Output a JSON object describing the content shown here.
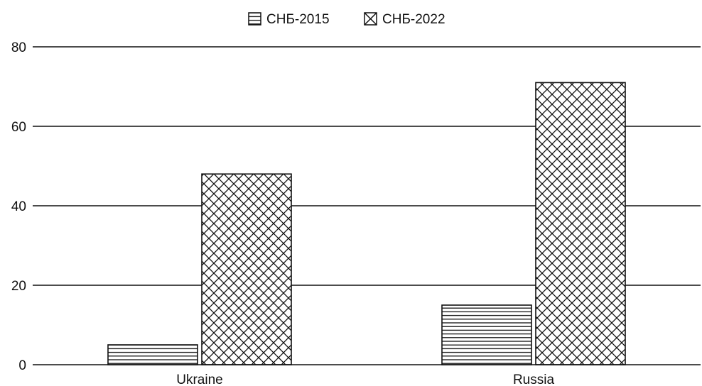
{
  "chart_data": {
    "type": "bar",
    "title": "",
    "xlabel": "",
    "ylabel": "",
    "categories": [
      "Ukraine",
      "Russia"
    ],
    "series": [
      {
        "name": "СНБ-2015",
        "values": [
          5,
          15
        ],
        "pattern": "horizontal-lines"
      },
      {
        "name": "СНБ-2022",
        "values": [
          48,
          71
        ],
        "pattern": "crosshatch"
      }
    ],
    "ylim": [
      0,
      80
    ],
    "yticks": [
      0,
      20,
      40,
      60,
      80
    ],
    "grid": true,
    "legend_position": "top-center",
    "colors": {
      "bar_stroke": "#111111",
      "grid": "#111111",
      "fill": "#ffffff"
    }
  }
}
